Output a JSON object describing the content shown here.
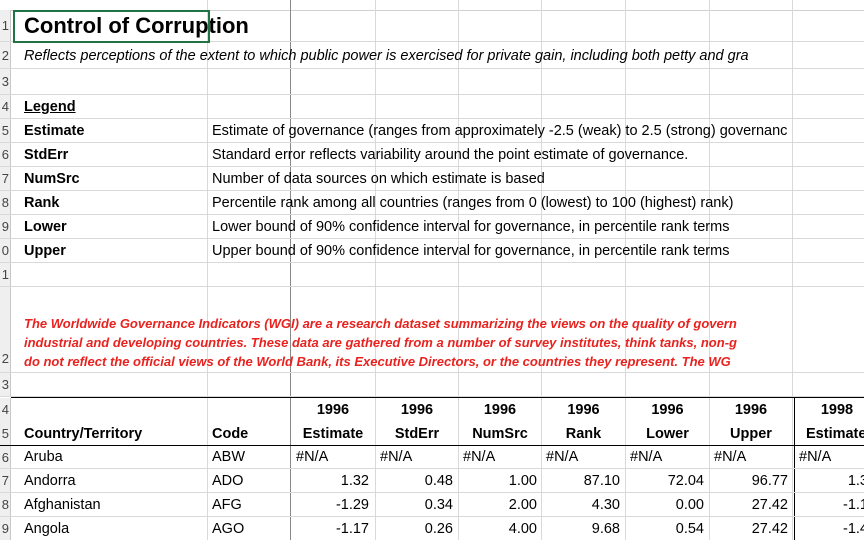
{
  "title": "Control of Corruption",
  "subtitle": "Reflects perceptions of the extent to which public power is exercised for private gain, including both petty and gra",
  "legend": {
    "heading": "Legend",
    "items": [
      {
        "term": "Estimate",
        "desc": "Estimate of governance (ranges from approximately -2.5 (weak) to 2.5 (strong) governanc"
      },
      {
        "term": "StdErr",
        "desc": "Standard error reflects variability around the point estimate of governance."
      },
      {
        "term": "NumSrc",
        "desc": "Number of data sources on which estimate is based"
      },
      {
        "term": "Rank",
        "desc": "Percentile rank among all countries (ranges from 0 (lowest) to 100 (highest) rank)"
      },
      {
        "term": "Lower",
        "desc": "Lower bound of 90% confidence interval for governance, in percentile rank terms"
      },
      {
        "term": "Upper",
        "desc": "Upper bound of 90% confidence interval for governance, in percentile rank terms"
      }
    ]
  },
  "disclaimer": {
    "line1": "The Worldwide Governance Indicators (WGI) are a research dataset summarizing the views on the quality of govern",
    "line2": "industrial and developing countries. These data are gathered from a number of survey institutes, think tanks, non-g",
    "line3": "do not reflect the official views of the World Bank, its Executive Directors, or the countries they represent. The WG"
  },
  "rownums": [
    "1",
    "2",
    "3",
    "4",
    "5",
    "6",
    "7",
    "8",
    "9",
    "0",
    "1",
    "",
    "2",
    "3",
    "4",
    "5",
    "6",
    "7",
    "8",
    "9"
  ],
  "table": {
    "years": [
      "1996",
      "1996",
      "1996",
      "1996",
      "1996",
      "1996",
      "1998"
    ],
    "headers": [
      "Country/Territory",
      "Code",
      "Estimate",
      "StdErr",
      "NumSrc",
      "Rank",
      "Lower",
      "Upper",
      "Estimate"
    ],
    "rows": [
      [
        "Aruba",
        "ABW",
        "#N/A",
        "#N/A",
        "#N/A",
        "#N/A",
        "#N/A",
        "#N/A",
        "#N/A"
      ],
      [
        "Andorra",
        "ADO",
        "1.32",
        "0.48",
        "1.00",
        "87.10",
        "72.04",
        "96.77",
        "1.3"
      ],
      [
        "Afghanistan",
        "AFG",
        "-1.29",
        "0.34",
        "2.00",
        "4.30",
        "0.00",
        "27.42",
        "-1.1"
      ],
      [
        "Angola",
        "AGO",
        "-1.17",
        "0.26",
        "4.00",
        "9.68",
        "0.54",
        "27.42",
        "-1.4"
      ]
    ]
  }
}
